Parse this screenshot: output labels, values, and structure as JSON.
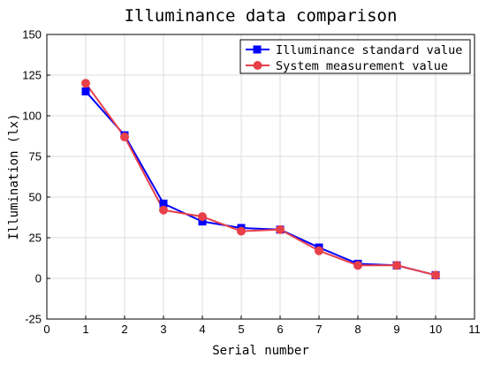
{
  "chart_data": {
    "type": "line",
    "title": "Illuminance data comparison",
    "xlabel": "Serial number",
    "ylabel": "Illumination (lx)",
    "xlim": [
      0,
      11
    ],
    "ylim": [
      -25,
      150
    ],
    "xticks": [
      "0",
      "1",
      "2",
      "3",
      "4",
      "5",
      "6",
      "7",
      "8",
      "9",
      "10",
      "11"
    ],
    "yticks": [
      "150",
      "125",
      "100",
      "75",
      "50",
      "25",
      "0",
      "-25"
    ],
    "x": [
      1,
      2,
      3,
      4,
      5,
      6,
      7,
      8,
      9,
      10
    ],
    "grid": true,
    "legend_position": "top-right",
    "series": [
      {
        "name": "Illuminance standard value",
        "values": [
          115,
          88,
          46,
          35,
          31,
          30,
          19,
          9,
          8,
          2
        ],
        "color": "#0000ff",
        "marker": "square"
      },
      {
        "name": "System measurement value",
        "values": [
          120,
          87,
          42,
          38,
          29,
          30,
          17,
          8,
          8,
          2
        ],
        "color": "#e8404a",
        "marker": "circle"
      }
    ]
  }
}
